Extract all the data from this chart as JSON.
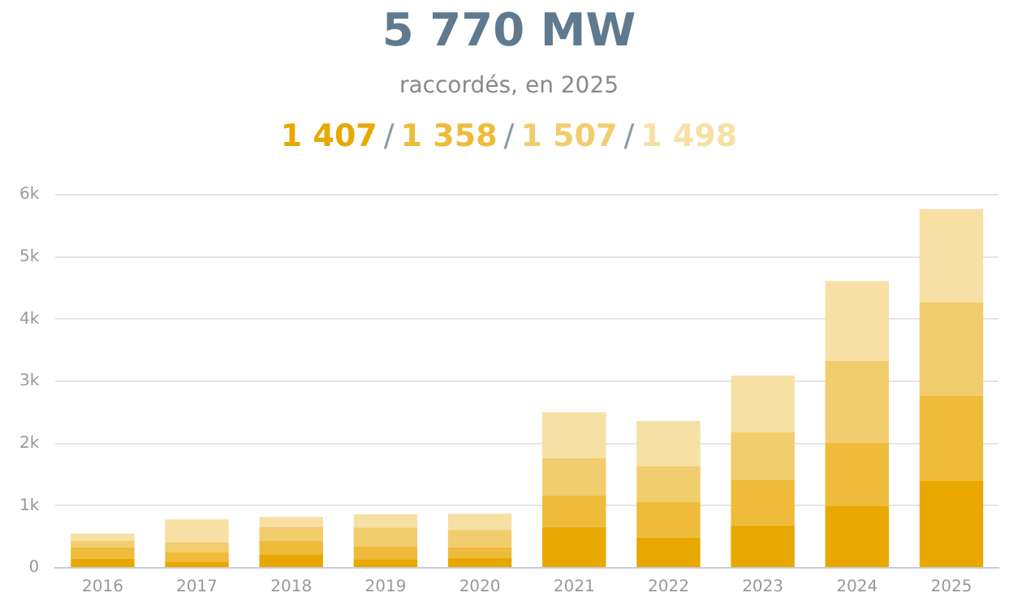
{
  "chart_data": {
    "type": "bar",
    "stacked": true,
    "title": "5 770 MW",
    "subtitle": "raccordés, en 2025",
    "annotations": [
      "1 407",
      "/",
      "1 358",
      "/",
      "1 507",
      "/",
      "1 498"
    ],
    "categories": [
      "2016",
      "2017",
      "2018",
      "2019",
      "2020",
      "2021",
      "2022",
      "2023",
      "2024",
      "2025"
    ],
    "series": [
      {
        "color": "#e8a800",
        "values": [
          150,
          100,
          220,
          140,
          160,
          660,
          490,
          680,
          990,
          1407
        ]
      },
      {
        "color": "#eebc3a",
        "values": [
          180,
          150,
          210,
          210,
          170,
          500,
          570,
          740,
          1020,
          1358
        ]
      },
      {
        "color": "#f2cd6e",
        "values": [
          100,
          160,
          230,
          300,
          280,
          600,
          570,
          760,
          1320,
          1507
        ]
      },
      {
        "color": "#f6e0a4",
        "values": [
          120,
          370,
          160,
          210,
          260,
          740,
          730,
          910,
          1280,
          1498
        ]
      }
    ],
    "ylim": [
      0,
      6000
    ],
    "yticks": [
      0,
      {
        "value": 1000,
        "label": "1k"
      },
      {
        "value": 2000,
        "label": "2k"
      },
      {
        "value": 3000,
        "label": "3k"
      },
      {
        "value": 4000,
        "label": "4k"
      },
      {
        "value": 5000,
        "label": "5k"
      },
      {
        "value": 6000,
        "label": "6k"
      }
    ],
    "grid": "y"
  }
}
